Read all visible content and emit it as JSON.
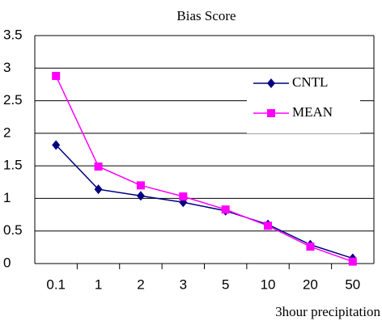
{
  "chart_data": {
    "type": "line",
    "title": "Bias Score",
    "x_label": "3hour precipitation",
    "categories": [
      "0.1",
      "1",
      "2",
      "3",
      "5",
      "10",
      "20",
      "50"
    ],
    "series": [
      {
        "name": "CNTL",
        "color": "#000080",
        "marker": "diamond",
        "values": [
          1.82,
          1.14,
          1.04,
          0.94,
          0.81,
          0.6,
          0.29,
          0.08
        ]
      },
      {
        "name": "MEAN",
        "color": "#ff00ff",
        "marker": "square",
        "values": [
          2.88,
          1.49,
          1.2,
          1.03,
          0.83,
          0.58,
          0.26,
          0.03
        ]
      }
    ],
    "ylim": [
      0,
      3.5
    ],
    "yticks": [
      0,
      0.5,
      1,
      1.5,
      2,
      2.5,
      3,
      3.5
    ],
    "grid": true,
    "legend": "upper right"
  }
}
